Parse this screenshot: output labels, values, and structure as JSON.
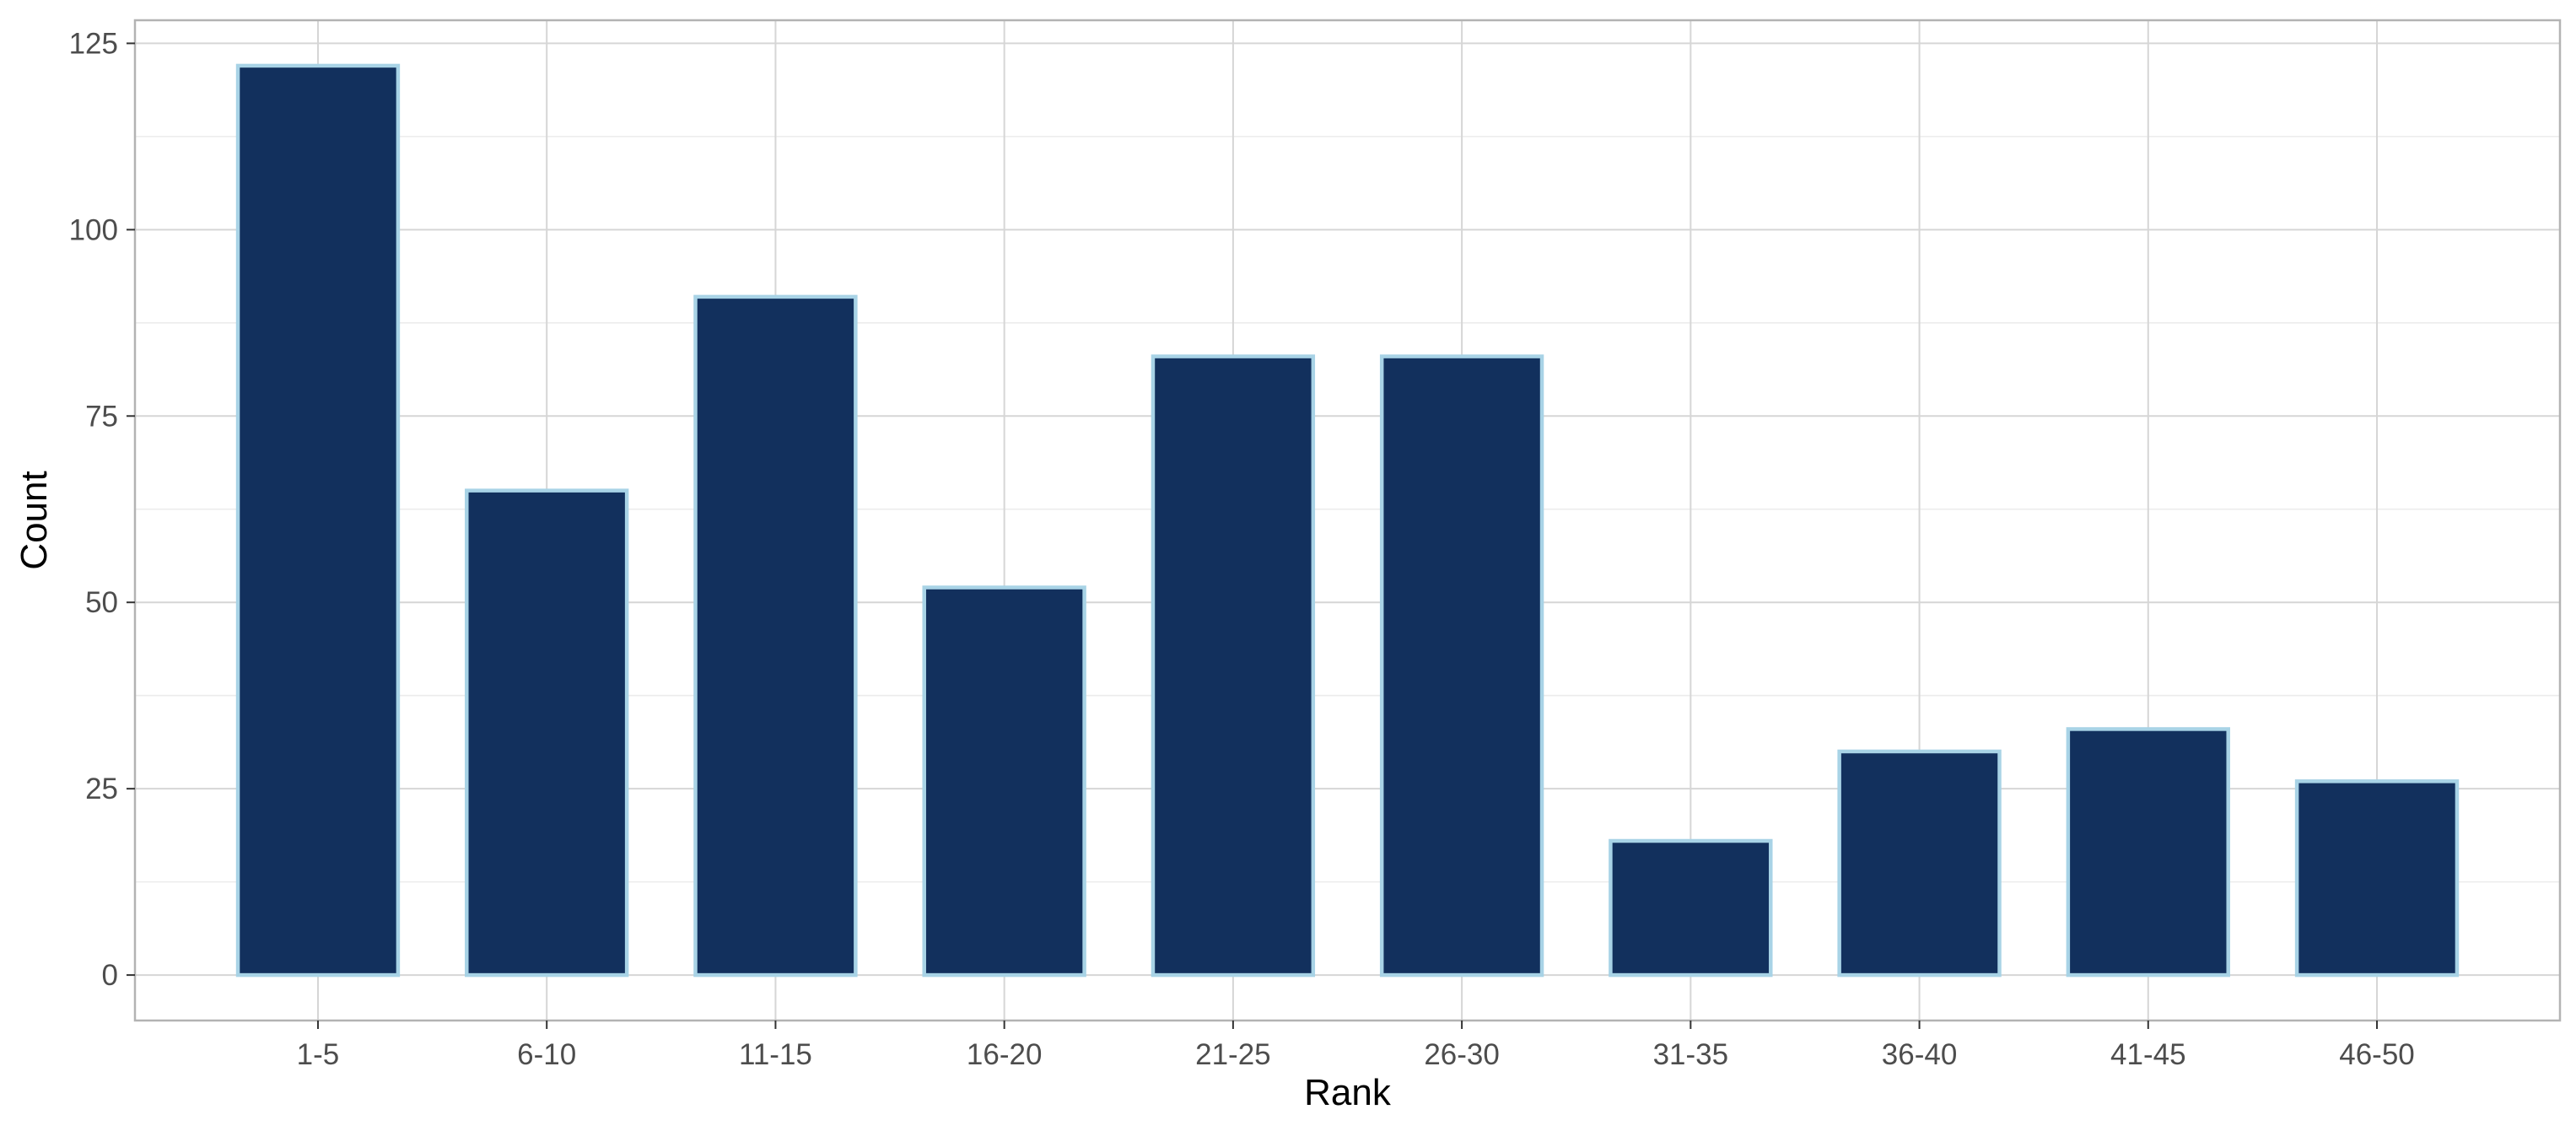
{
  "chart_data": {
    "type": "bar",
    "categories": [
      "1-5",
      "6-10",
      "11-15",
      "16-20",
      "21-25",
      "26-30",
      "31-35",
      "36-40",
      "41-45",
      "46-50"
    ],
    "values": [
      122,
      65,
      91,
      52,
      83,
      83,
      18,
      30,
      33,
      26
    ],
    "title": "",
    "xlabel": "Rank",
    "ylabel": "Count",
    "ylim": [
      -6.1,
      128.1
    ],
    "yticks": [
      0,
      25,
      50,
      75,
      100,
      125
    ],
    "y_minor_ticks": [
      12.5,
      37.5,
      62.5,
      87.5,
      112.5
    ],
    "grid": true,
    "legend": "none",
    "colors": {
      "bar_fill": "#0d2c5a",
      "bar_stroke": "#a8d3e6",
      "grid_major": "#d6d6d6",
      "grid_minor": "#ececec",
      "panel_border": "#b3b3b3",
      "tick_text": "#4d4d4d",
      "axis_title": "#000000"
    }
  }
}
